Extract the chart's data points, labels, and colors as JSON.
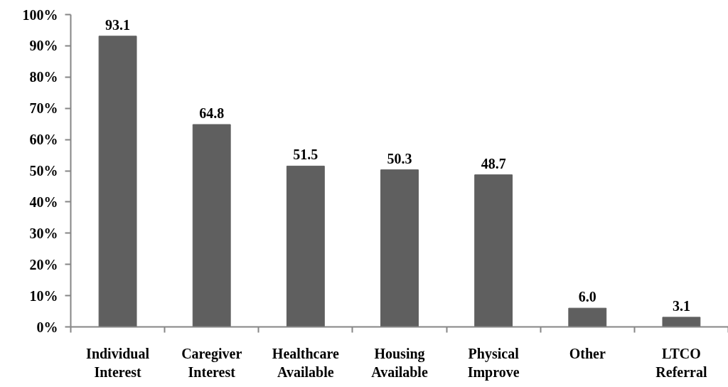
{
  "chart_data": {
    "type": "bar",
    "categories": [
      "Individual Interest",
      "Caregiver Interest",
      "Healthcare Available",
      "Housing Available",
      "Physical Improve",
      "Other",
      "LTCO Referral"
    ],
    "values": [
      93.1,
      64.8,
      51.5,
      50.3,
      48.7,
      6.0,
      3.1
    ],
    "value_labels": [
      "93.1",
      "64.8",
      "51.5",
      "50.3",
      "48.7",
      "6.0",
      "3.1"
    ],
    "color": "#5f5f5f",
    "ylim": [
      0,
      100
    ],
    "yticks": [
      {
        "value": 0,
        "label": "0%"
      },
      {
        "value": 10,
        "label": "10%"
      },
      {
        "value": 20,
        "label": "20%"
      },
      {
        "value": 30,
        "label": "30%"
      },
      {
        "value": 40,
        "label": "40%"
      },
      {
        "value": 50,
        "label": "50%"
      },
      {
        "value": 60,
        "label": "60%"
      },
      {
        "value": 70,
        "label": "70%"
      },
      {
        "value": 80,
        "label": "80%"
      },
      {
        "value": 90,
        "label": "90%"
      },
      {
        "value": 100,
        "label": "100%"
      }
    ]
  }
}
